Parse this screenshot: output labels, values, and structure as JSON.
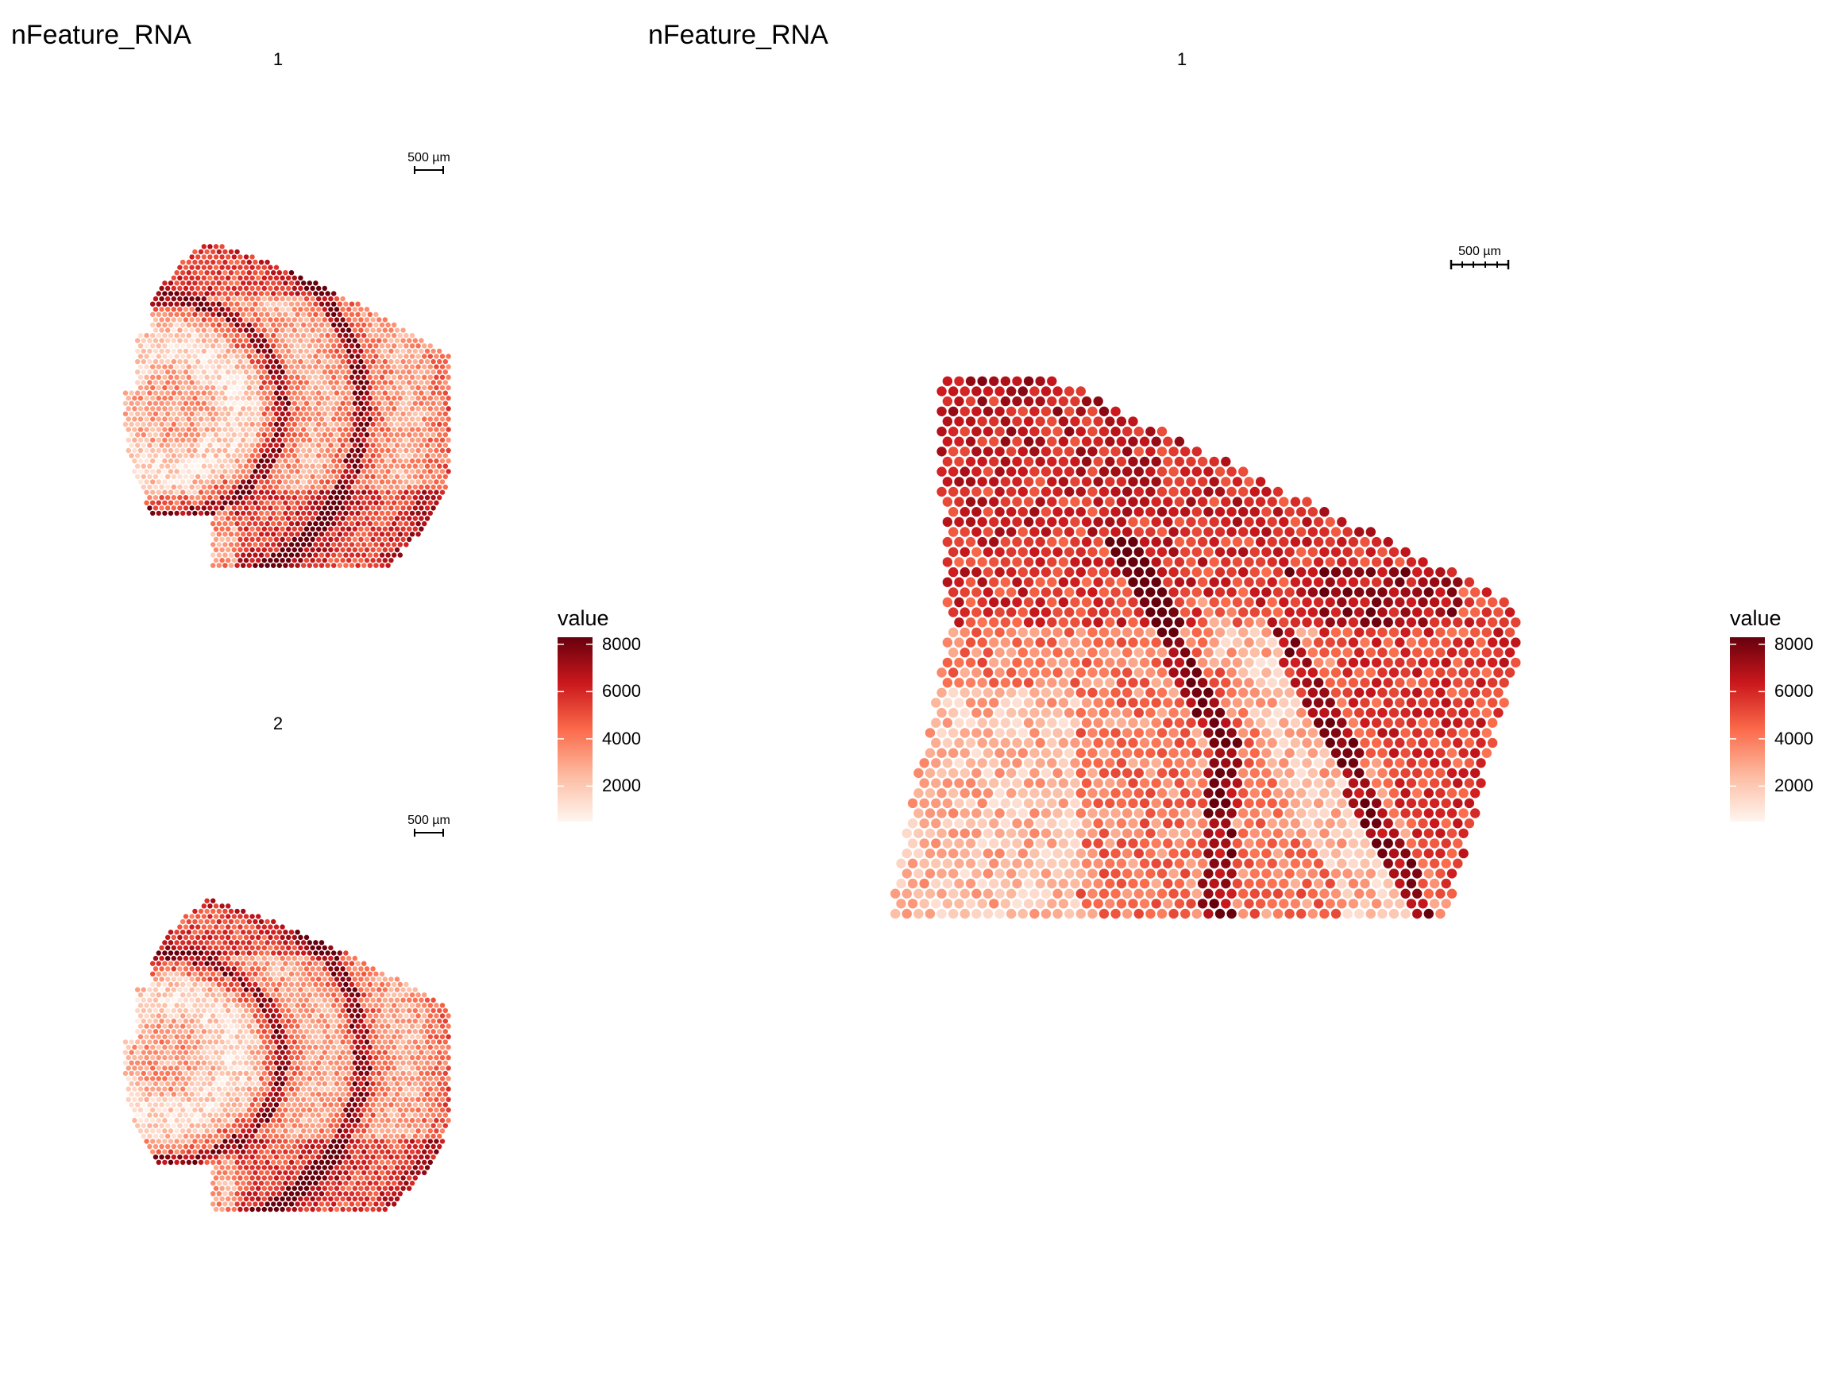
{
  "colors": {
    "scale_low": "#fff5f0",
    "scale_mid1": "#fcbba1",
    "scale_mid2": "#fb6a4a",
    "scale_mid3": "#cb181d",
    "scale_high": "#67000d",
    "background": "#ffffff"
  },
  "chart_data": [
    {
      "type": "scatter",
      "title": "nFeature_RNA",
      "facets": [
        {
          "label": "1",
          "scale_bar_label": "500 µm"
        },
        {
          "label": "2",
          "scale_bar_label": "500 µm"
        }
      ],
      "legend": {
        "title": "value",
        "ticks": [
          "2000",
          "4000",
          "6000",
          "8000"
        ],
        "tick_values": [
          2000,
          4000,
          6000,
          8000
        ],
        "range": [
          500,
          8300
        ],
        "placement": "right"
      },
      "value_range": [
        500,
        8300
      ]
    },
    {
      "type": "scatter",
      "title": "nFeature_RNA",
      "facets": [
        {
          "label": "1",
          "scale_bar_label": "500 µm"
        }
      ],
      "legend": {
        "title": "value",
        "ticks": [
          "2000",
          "4000",
          "6000",
          "8000"
        ],
        "tick_values": [
          2000,
          4000,
          6000,
          8000
        ],
        "range": [
          500,
          8300
        ],
        "placement": "right"
      },
      "value_range": [
        500,
        8300
      ]
    }
  ]
}
